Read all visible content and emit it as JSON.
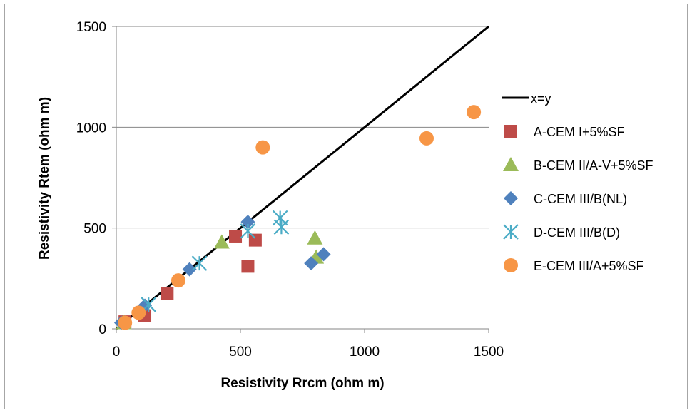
{
  "chart_data": {
    "type": "scatter",
    "title": "",
    "xlabel": "Resistivity Rrcm (ohm m)",
    "ylabel": "Resistivity Rtem (ohm m)",
    "xlim": [
      0,
      1500
    ],
    "ylim": [
      0,
      1500
    ],
    "xticks": [
      0,
      500,
      1000,
      1500
    ],
    "yticks": [
      0,
      500,
      1000,
      1500
    ],
    "xtick_labels": [
      "0",
      "500",
      "1000",
      "1500"
    ],
    "ytick_labels": [
      "0",
      "500",
      "1000",
      "1500"
    ],
    "grid": "horizontal major gridlines",
    "legend_position": "right",
    "reference_line": {
      "name": "x=y",
      "color": "#000000",
      "points": [
        [
          0,
          0
        ],
        [
          1500,
          1500
        ]
      ]
    },
    "series": [
      {
        "name": "A-CEM I+5%SF",
        "marker": "square",
        "color": "#be4b48",
        "points": [
          [
            35,
            35
          ],
          [
            115,
            65
          ],
          [
            205,
            175
          ],
          [
            480,
            460
          ],
          [
            560,
            440
          ],
          [
            530,
            310
          ]
        ]
      },
      {
        "name": "B-CEM II/A-V+5%SF",
        "marker": "triangle",
        "color": "#9bbb59",
        "points": [
          [
            30,
            30
          ],
          [
            425,
            430
          ],
          [
            800,
            450
          ],
          [
            805,
            355
          ]
        ]
      },
      {
        "name": "C-CEM III/B(NL)",
        "marker": "diamond",
        "color": "#4f81bd",
        "points": [
          [
            20,
            30
          ],
          [
            115,
            115
          ],
          [
            295,
            295
          ],
          [
            530,
            530
          ],
          [
            785,
            325
          ],
          [
            835,
            370
          ]
        ]
      },
      {
        "name": "D-CEM III/B(D)",
        "marker": "asterisk",
        "color": "#4bacc6",
        "points": [
          [
            130,
            120
          ],
          [
            335,
            325
          ],
          [
            530,
            485
          ],
          [
            660,
            550
          ],
          [
            665,
            505
          ]
        ]
      },
      {
        "name": "E-CEM III/A+5%SF",
        "marker": "circle",
        "color": "#f79646",
        "points": [
          [
            35,
            30
          ],
          [
            90,
            80
          ],
          [
            250,
            240
          ],
          [
            590,
            900
          ],
          [
            1250,
            945
          ],
          [
            1440,
            1075
          ]
        ]
      }
    ]
  }
}
